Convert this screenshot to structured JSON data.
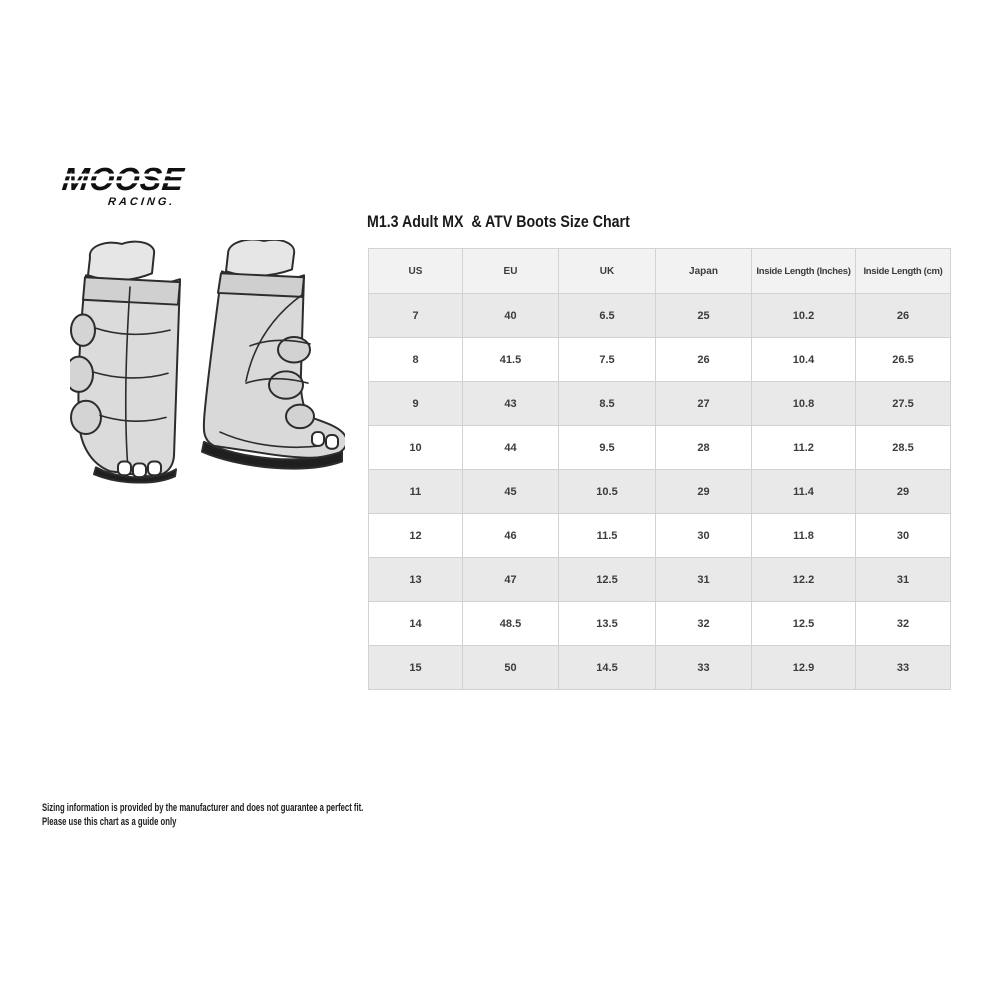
{
  "brand": {
    "name": "MOOSE",
    "subname": "RACING."
  },
  "chart_data": {
    "type": "table",
    "title": "M1.3 Adult MX  & ATV Boots Size Chart",
    "columns": [
      "US",
      "EU",
      "UK",
      "Japan",
      "Inside Length (Inches)",
      "Inside Length (cm)"
    ],
    "rows": [
      [
        "7",
        "40",
        "6.5",
        "25",
        "10.2",
        "26"
      ],
      [
        "8",
        "41.5",
        "7.5",
        "26",
        "10.4",
        "26.5"
      ],
      [
        "9",
        "43",
        "8.5",
        "27",
        "10.8",
        "27.5"
      ],
      [
        "10",
        "44",
        "9.5",
        "28",
        "11.2",
        "28.5"
      ],
      [
        "11",
        "45",
        "10.5",
        "29",
        "11.4",
        "29"
      ],
      [
        "12",
        "46",
        "11.5",
        "30",
        "11.8",
        "30"
      ],
      [
        "13",
        "47",
        "12.5",
        "31",
        "12.2",
        "31"
      ],
      [
        "14",
        "48.5",
        "13.5",
        "32",
        "12.5",
        "32"
      ],
      [
        "15",
        "50",
        "14.5",
        "33",
        "12.9",
        "33"
      ]
    ],
    "layout": {
      "grid": "on",
      "alternating_rows": true,
      "header_row": true
    }
  },
  "disclaimer": {
    "line1": "Sizing information is provided by the manufacturer and does not guarantee a perfect fit.",
    "line2": "Please use this chart as a guide only"
  },
  "colors": {
    "logo": "#101010",
    "table_border": "#d2d2d2",
    "header_bg": "#f2f2f2",
    "row_alt_bg": "#e9e9e9",
    "cell_text": "#3c3c3c",
    "title_text": "#191919"
  }
}
